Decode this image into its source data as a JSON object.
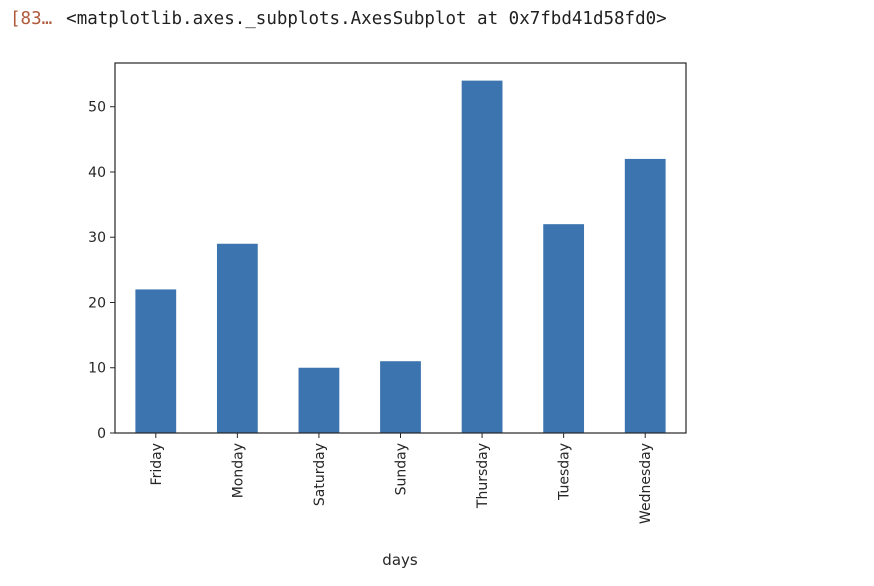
{
  "output": {
    "prompt": "[83…",
    "repr": "<matplotlib.axes._subplots.AxesSubplot at 0x7fbd41d58fd0>"
  },
  "colors": {
    "bar": "#3b74ae",
    "prompt": "#b05a3c"
  },
  "chart_data": {
    "type": "bar",
    "categories": [
      "Friday",
      "Monday",
      "Saturday",
      "Sunday",
      "Thursday",
      "Tuesday",
      "Wednesday"
    ],
    "values": [
      22,
      29,
      10,
      11,
      54,
      32,
      42
    ],
    "xlabel": "days",
    "ylabel": "",
    "ylim": [
      0,
      56.7
    ],
    "yticks": [
      0,
      10,
      20,
      30,
      40,
      50
    ],
    "grid": false,
    "legend": "none"
  }
}
